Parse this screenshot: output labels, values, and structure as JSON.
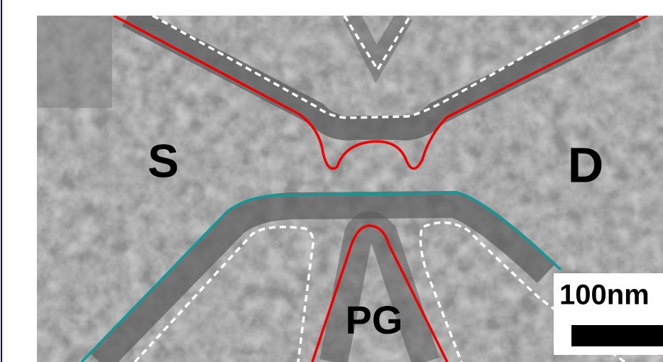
{
  "labels": {
    "source": "S",
    "drain": "D",
    "gate": "PG"
  },
  "scale_bar": {
    "label": "100nm"
  }
}
